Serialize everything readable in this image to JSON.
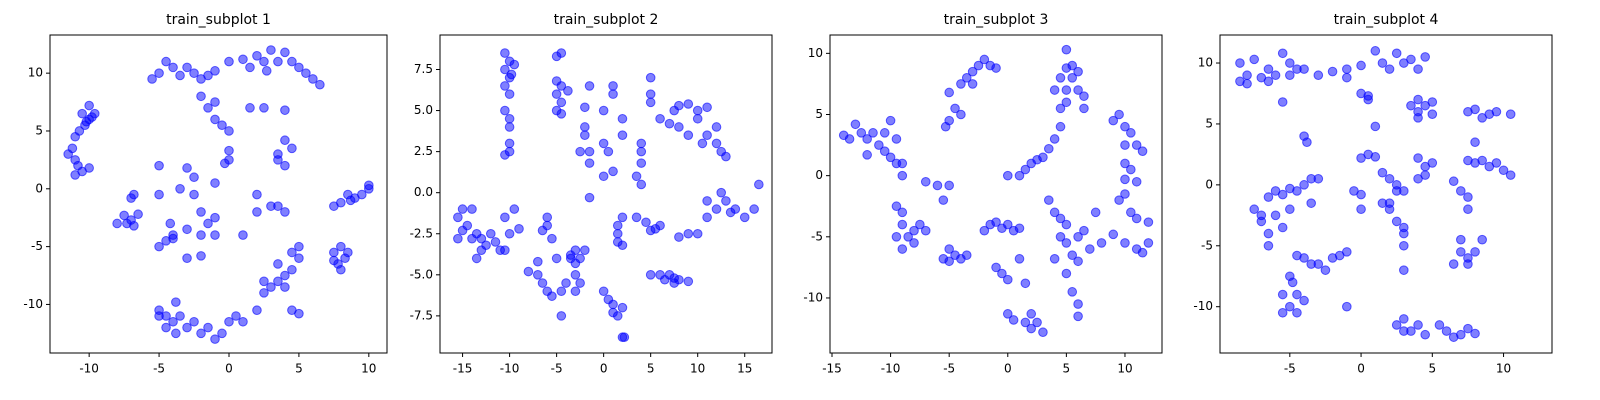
{
  "chart_data": [
    {
      "type": "scatter",
      "title": "train_subplot 1",
      "color": "#0000ff",
      "xlim": [
        -12.8,
        11.3
      ],
      "ylim": [
        -14.2,
        13.3
      ],
      "xticks": [
        -10,
        -5,
        0,
        5,
        10
      ],
      "yticks": [
        -10,
        -5,
        0,
        5,
        10
      ],
      "x": [
        -10,
        -9.6,
        -10.5,
        -10,
        -10.3,
        -10.7,
        -11,
        -11.2,
        -11.5,
        -11,
        -10.8,
        -10.5,
        -10,
        -11,
        -10.2,
        -9.8,
        -8,
        -7.5,
        -7,
        -6.8,
        -7.3,
        -6.5,
        -7,
        -6.8,
        -5,
        -4.5,
        -4,
        -4.5,
        -3.8,
        -3.5,
        -3,
        -2.5,
        -2,
        -1.5,
        -1,
        -0.5,
        0,
        0.5,
        1,
        2,
        -3.8,
        -5,
        2.5,
        3,
        2.5,
        3.5,
        4,
        4.5,
        5,
        4.5,
        5,
        4,
        4.5,
        5,
        3.5,
        7.5,
        8,
        8.3,
        7.8,
        8.5,
        8,
        7.5,
        7.5,
        8,
        8.5,
        9,
        9.5,
        10,
        10,
        8.7,
        -5.5,
        -5,
        -4.5,
        -4,
        -3,
        -2.5,
        -2,
        -1.5,
        -1,
        0,
        1,
        1.5,
        2,
        2.5,
        3,
        3.5,
        4,
        4.5,
        5,
        5.5,
        6,
        6.5,
        2.7,
        -3.5,
        -2,
        -1,
        -1.5,
        -1,
        -0.5,
        0,
        1.5,
        2.5,
        4,
        -3,
        -2.5,
        -3.5,
        -2.5,
        -1,
        0,
        0,
        -0.3,
        -5,
        -5,
        -5,
        -4.5,
        -4,
        -4.2,
        -3,
        -2,
        -1.5,
        -1,
        -1,
        -2,
        -3,
        -2,
        1,
        2,
        2,
        3,
        3.5,
        4,
        3.5,
        4,
        3.5,
        4.5,
        4,
        -4
      ],
      "values": [
        7.2,
        6.5,
        6.5,
        6,
        5.5,
        5,
        4.5,
        3.5,
        3,
        2.5,
        2,
        1.5,
        1.8,
        1.2,
        5.8,
        6.2,
        -3,
        -2.3,
        -2.7,
        -3.2,
        -3,
        -2.2,
        -0.8,
        -0.5,
        -10.5,
        -11,
        -11.5,
        -12,
        -12.5,
        -11,
        -12,
        -11.5,
        -12.5,
        -12,
        -13,
        -12.5,
        -11.5,
        -11,
        -11.5,
        -10.5,
        -9.8,
        -11,
        -8,
        -8.5,
        -9,
        -8,
        -7.5,
        -7,
        -6,
        -5.5,
        -5,
        -8.5,
        -10.5,
        -10.8,
        -6.5,
        -5.5,
        -5,
        -6,
        -6.5,
        -5.5,
        -7,
        -6.2,
        -1.5,
        -1.2,
        -0.5,
        -0.8,
        -0.5,
        0,
        0.3,
        -1,
        9.5,
        10,
        11,
        10.5,
        10.5,
        10,
        9.5,
        9.8,
        10.2,
        11,
        11.2,
        10.5,
        11.5,
        11,
        12,
        11,
        11.8,
        11,
        10.5,
        10,
        9.5,
        9,
        10.2,
        9.8,
        8,
        7.5,
        7,
        6,
        5.5,
        5,
        7,
        7,
        6.8,
        1.8,
        1,
        0,
        -0.5,
        0.5,
        2.5,
        3.3,
        2.2,
        2,
        -0.5,
        -5,
        -4.5,
        -4,
        -3,
        -3.5,
        -2,
        -3,
        -2.5,
        -4,
        -4,
        -6,
        -5.8,
        -4,
        -0.5,
        -2,
        -1.5,
        -1.5,
        -2,
        2.5,
        2,
        3,
        3.5,
        4.2,
        -4.3
      ]
    },
    {
      "type": "scatter",
      "title": "train_subplot 2",
      "color": "#0000ff",
      "xlim": [
        -17.4,
        17.9
      ],
      "ylim": [
        -9.76,
        9.6
      ],
      "xticks": [
        -15,
        -10,
        -5,
        0,
        5,
        10,
        15
      ],
      "yticks": [
        -7.5,
        {
          "value": -5,
          "label": "-5.0"
        },
        -2.5,
        {
          "value": 0,
          "label": "0.0"
        },
        2.5,
        {
          "value": 5,
          "label": "5.0"
        },
        7.5
      ],
      "x": [
        -10.5,
        -10,
        -10.5,
        -10,
        -10.5,
        -10,
        -10.5,
        -10,
        -10,
        -10,
        -10,
        -10.5,
        -9.5,
        -9.8,
        -5,
        -4.5,
        -5,
        -4.5,
        -5,
        -4.5,
        -5,
        -4.5,
        -3.8,
        -2,
        -2,
        -1.5,
        -2.5,
        -1.5,
        -2,
        -1.5,
        0,
        1,
        1,
        2,
        2,
        0,
        0.5,
        1,
        0,
        4,
        4,
        4,
        3.5,
        4,
        5,
        5,
        5,
        6,
        7,
        7.5,
        8,
        9,
        8,
        9,
        10,
        10,
        11,
        11,
        12,
        12.5,
        13,
        12,
        10.5,
        10,
        11,
        12,
        12.5,
        13,
        14,
        15,
        16,
        16.5,
        11,
        13.5,
        9,
        8,
        5,
        6,
        5.5,
        3.5,
        4.5,
        1.5,
        1.5,
        1.5,
        2,
        -1.5,
        2,
        5,
        6,
        6.5,
        7,
        7.5,
        8,
        9,
        7.5,
        0,
        0.5,
        1,
        1.5,
        2,
        2,
        2.2,
        1,
        -3,
        -3.5,
        -3,
        -2.5,
        -3.5,
        -2,
        -3,
        -2.5,
        -3,
        -4,
        -4.5,
        -4.5,
        -5.5,
        -6,
        -6.5,
        -7,
        -8,
        -7,
        -6,
        -6,
        -6.5,
        -5.5,
        -5,
        -15,
        -15.5,
        -15,
        -15.5,
        -14,
        -14.5,
        -13.5,
        -13,
        -13,
        -13.5,
        -12,
        -11.5,
        -11,
        -10.5,
        -10,
        -10.5,
        -9.5,
        -9,
        -12.5,
        -14
      ],
      "values": [
        8.5,
        8,
        7.5,
        7,
        6.5,
        6,
        5,
        4.5,
        4,
        3,
        2.5,
        2.3,
        7.8,
        7.2,
        8.3,
        8.5,
        6.8,
        6.5,
        6,
        5.5,
        5,
        4.8,
        6.2,
        4,
        3.5,
        2.5,
        2.5,
        1.8,
        5.2,
        6.5,
        5,
        6.5,
        6,
        4.5,
        3.5,
        3,
        2.5,
        1.3,
        1,
        3,
        2.5,
        1.8,
        1,
        0.5,
        7,
        6,
        5.5,
        4.5,
        4.2,
        5,
        5.3,
        5.4,
        4,
        3.5,
        5,
        4.5,
        5.2,
        3.5,
        3,
        2.5,
        2.2,
        4,
        3,
        -2.5,
        -1.5,
        -1,
        0,
        -0.5,
        -1,
        -1.5,
        -1,
        0.5,
        -0.5,
        -1.2,
        -2.5,
        -2.7,
        -2.3,
        -2,
        -2.2,
        -1.5,
        -1.8,
        -2,
        -2.5,
        -3,
        -1.5,
        -0.3,
        -3.2,
        -5,
        -5,
        -5.3,
        -5,
        -5.5,
        -5.3,
        -5.4,
        -5.2,
        -6,
        -6.5,
        -7.3,
        -7.5,
        -7,
        -8.8,
        -8.8,
        -6.8,
        -3.5,
        -4,
        -4.3,
        -4,
        -3.8,
        -3.5,
        -5,
        -5.5,
        -6,
        -5.5,
        -6,
        -7.5,
        -6.3,
        -6,
        -5.5,
        -5,
        -4.8,
        -4.2,
        -1.5,
        -2,
        -2.3,
        -2.8,
        -4,
        -1,
        -1.5,
        -2.3,
        -2.8,
        -1,
        -2,
        -2.5,
        -2.8,
        -3.5,
        -4,
        -2.5,
        -3,
        -3.5,
        -3.5,
        -2.5,
        -1.5,
        -1,
        -2.2,
        -3.2,
        -2.8
      ]
    },
    {
      "type": "scatter",
      "title": "train_subplot 3",
      "color": "#0000ff",
      "xlim": [
        -15.17,
        13.16
      ],
      "ylim": [
        -14.5,
        11.5
      ],
      "xticks": [
        -15,
        -10,
        -5,
        0,
        5,
        10
      ],
      "yticks": [
        -10,
        -5,
        0,
        5,
        10
      ],
      "x": [
        -14,
        -13.5,
        -13,
        -12.5,
        -12,
        -11.5,
        -11,
        -10.5,
        -10,
        -9.5,
        -10,
        -9.5,
        -9,
        -12,
        -10.5,
        -9,
        -5,
        -4.5,
        -4,
        -5,
        -4,
        -3.5,
        -3,
        -2.5,
        -2,
        -1.5,
        -1,
        -3,
        -5.3,
        -7,
        -6,
        -5,
        -5.5,
        -9.5,
        -9,
        -9,
        -8.5,
        -9,
        -8,
        -7.5,
        -7,
        -8,
        -9.5,
        -5,
        -5,
        -4.5,
        -4,
        -5.5,
        -3.5,
        -2,
        -1.5,
        -1,
        -0.5,
        0,
        0.5,
        1,
        -1,
        -0.5,
        0,
        1,
        1.5,
        0,
        0.5,
        1.5,
        2,
        2.5,
        3,
        2,
        0,
        1,
        1.5,
        2,
        2.5,
        3,
        3.5,
        4,
        4.5,
        4.5,
        5,
        5,
        5.5,
        5,
        5.5,
        6,
        6,
        6.5,
        6.5,
        5,
        4.5,
        4,
        3.5,
        4,
        4.5,
        5,
        4.5,
        5,
        4,
        6,
        6.5,
        5.5,
        6,
        5,
        5.5,
        6,
        6,
        7.5,
        8,
        7,
        9,
        9.5,
        10,
        10.5,
        11,
        11.5,
        10,
        10.5,
        11,
        10,
        9.5,
        10.5,
        11,
        12,
        10,
        10,
        9,
        10,
        11,
        12,
        11.5
      ],
      "values": [
        3.3,
        3,
        4.2,
        3.5,
        3,
        3.5,
        2.5,
        2,
        1.5,
        1,
        4.5,
        3,
        1,
        1.7,
        3.5,
        0,
        4.5,
        5.5,
        5,
        6.8,
        7.5,
        8,
        8.5,
        9,
        9.5,
        9,
        8.8,
        7.5,
        4,
        -0.5,
        -0.8,
        -0.8,
        -2,
        -2.5,
        -3,
        -4,
        -5,
        -6,
        -4.5,
        -4,
        -4.5,
        -5.5,
        -5,
        -6,
        -7,
        -6.5,
        -6.8,
        -6.8,
        -6.5,
        -4.5,
        -4,
        -3.8,
        -4.3,
        -4,
        -4.5,
        -4.3,
        -7.5,
        -8,
        -8.5,
        -6.8,
        -8.8,
        -11.3,
        -11.8,
        -12,
        -12.5,
        -12,
        -12.8,
        -11.3,
        0,
        0,
        0.5,
        1,
        1.3,
        1.5,
        2.2,
        3,
        4,
        5.5,
        6,
        7,
        8,
        8.8,
        9,
        8.5,
        7,
        6.5,
        5.5,
        10.3,
        8,
        7,
        -2,
        -3,
        -3.5,
        -4,
        -5,
        -5.5,
        -6.8,
        -5,
        -4.5,
        -6.5,
        -7,
        -8,
        -9.5,
        -10.5,
        -11.5,
        -3,
        -5.5,
        -6,
        4.5,
        5,
        4,
        3.5,
        2.5,
        2,
        1,
        0.5,
        -0.5,
        -1.5,
        -2,
        -3,
        -3.5,
        -3.8,
        2.5,
        -0.3,
        -4.8,
        -5.5,
        -6,
        -5.5,
        -6.3
      ]
    },
    {
      "type": "scatter",
      "title": "train_subplot 4",
      "color": "#0000ff",
      "xlim": [
        -9.9,
        13.4
      ],
      "ylim": [
        -13.8,
        12.3
      ],
      "xticks": [
        -5,
        0,
        5,
        10
      ],
      "yticks": [
        -10,
        -5,
        0,
        5,
        10
      ],
      "x": [
        -8.5,
        -8,
        -7.5,
        -7,
        -6.5,
        -6,
        -5.5,
        -5,
        -5,
        -5.5,
        -6.5,
        -8.5,
        -4.5,
        -8,
        -4,
        -3,
        -2,
        -1,
        -1,
        0,
        0.5,
        0,
        0.5,
        1,
        1.5,
        2,
        2.5,
        3,
        3.5,
        4,
        4.5,
        1,
        3.5,
        4,
        4,
        4.5,
        5,
        5,
        4,
        -4,
        -3.8,
        -3.5,
        -3,
        -4,
        -3.5,
        -4.5,
        -5,
        -5.5,
        -6,
        -6.5,
        -7.5,
        -7,
        -6.5,
        -6.5,
        -7,
        -6,
        -5.5,
        -5,
        -4,
        -3.5,
        -3,
        -2,
        -2.5,
        -1,
        -1.5,
        -4.5,
        -5,
        -5.5,
        -5,
        -5.5,
        -4.5,
        -4.5,
        -4,
        -4.8,
        -0.5,
        0,
        0,
        -1,
        0,
        0.5,
        1,
        1.5,
        2,
        2.5,
        2.5,
        3,
        2,
        2.5,
        3,
        3,
        3,
        3,
        2,
        4,
        4.5,
        5,
        4,
        4.5,
        1.5,
        2.5,
        3,
        3.5,
        4,
        4.5,
        5.5,
        6,
        6.5,
        7,
        7.5,
        8,
        3,
        6.5,
        7,
        7.5,
        7.5,
        7,
        7,
        7.5,
        7.5,
        8,
        8.5,
        6.5,
        7.5,
        8,
        8.5,
        9,
        9.5,
        10,
        10.5,
        7.5,
        8,
        8.5,
        9,
        9.5,
        10.5,
        8
      ],
      "values": [
        10,
        9,
        10.3,
        8.8,
        9.5,
        9,
        10.8,
        10,
        9,
        6.8,
        8.5,
        8.5,
        9.5,
        8.3,
        9.5,
        9,
        9.3,
        8.8,
        9.5,
        9.8,
        7,
        7.5,
        7.3,
        11,
        10,
        9.5,
        10.8,
        10,
        10.3,
        9.5,
        10.5,
        4.8,
        6.5,
        7,
        6,
        6.5,
        6.8,
        5.8,
        5.5,
        4,
        3.5,
        0.5,
        0.5,
        0,
        -1.5,
        -0.5,
        -0.3,
        -0.8,
        -0.5,
        -1,
        -2,
        -3,
        -4,
        -5,
        -2.5,
        -2.5,
        -3.5,
        -2,
        -6,
        -6.5,
        -6.5,
        -6,
        -7,
        -5.5,
        -5.8,
        -5.8,
        -7.5,
        -9,
        -10,
        -10.5,
        -10.5,
        -9,
        -9.5,
        -8,
        -0.5,
        -0.8,
        -2,
        -10,
        2.2,
        2.5,
        2.3,
        1,
        0.5,
        0,
        -0.5,
        -0.5,
        -2,
        -3,
        -3.5,
        -4,
        -5,
        -7,
        -1.5,
        2.2,
        1.5,
        1.8,
        0.5,
        0.8,
        -1.5,
        -11.5,
        -11,
        -12,
        -11.5,
        -12.3,
        -11.5,
        -12,
        -12.5,
        -12.3,
        -11.8,
        -12.2,
        -12,
        0.3,
        -0.5,
        -1,
        -2,
        -4.5,
        -5.5,
        -6,
        -6.5,
        -5.5,
        -4.5,
        -6.5,
        2,
        1.8,
        2,
        1.5,
        1.8,
        1.2,
        0.8,
        6,
        6.2,
        5.5,
        5.8,
        6,
        5.8,
        3.5
      ]
    }
  ]
}
